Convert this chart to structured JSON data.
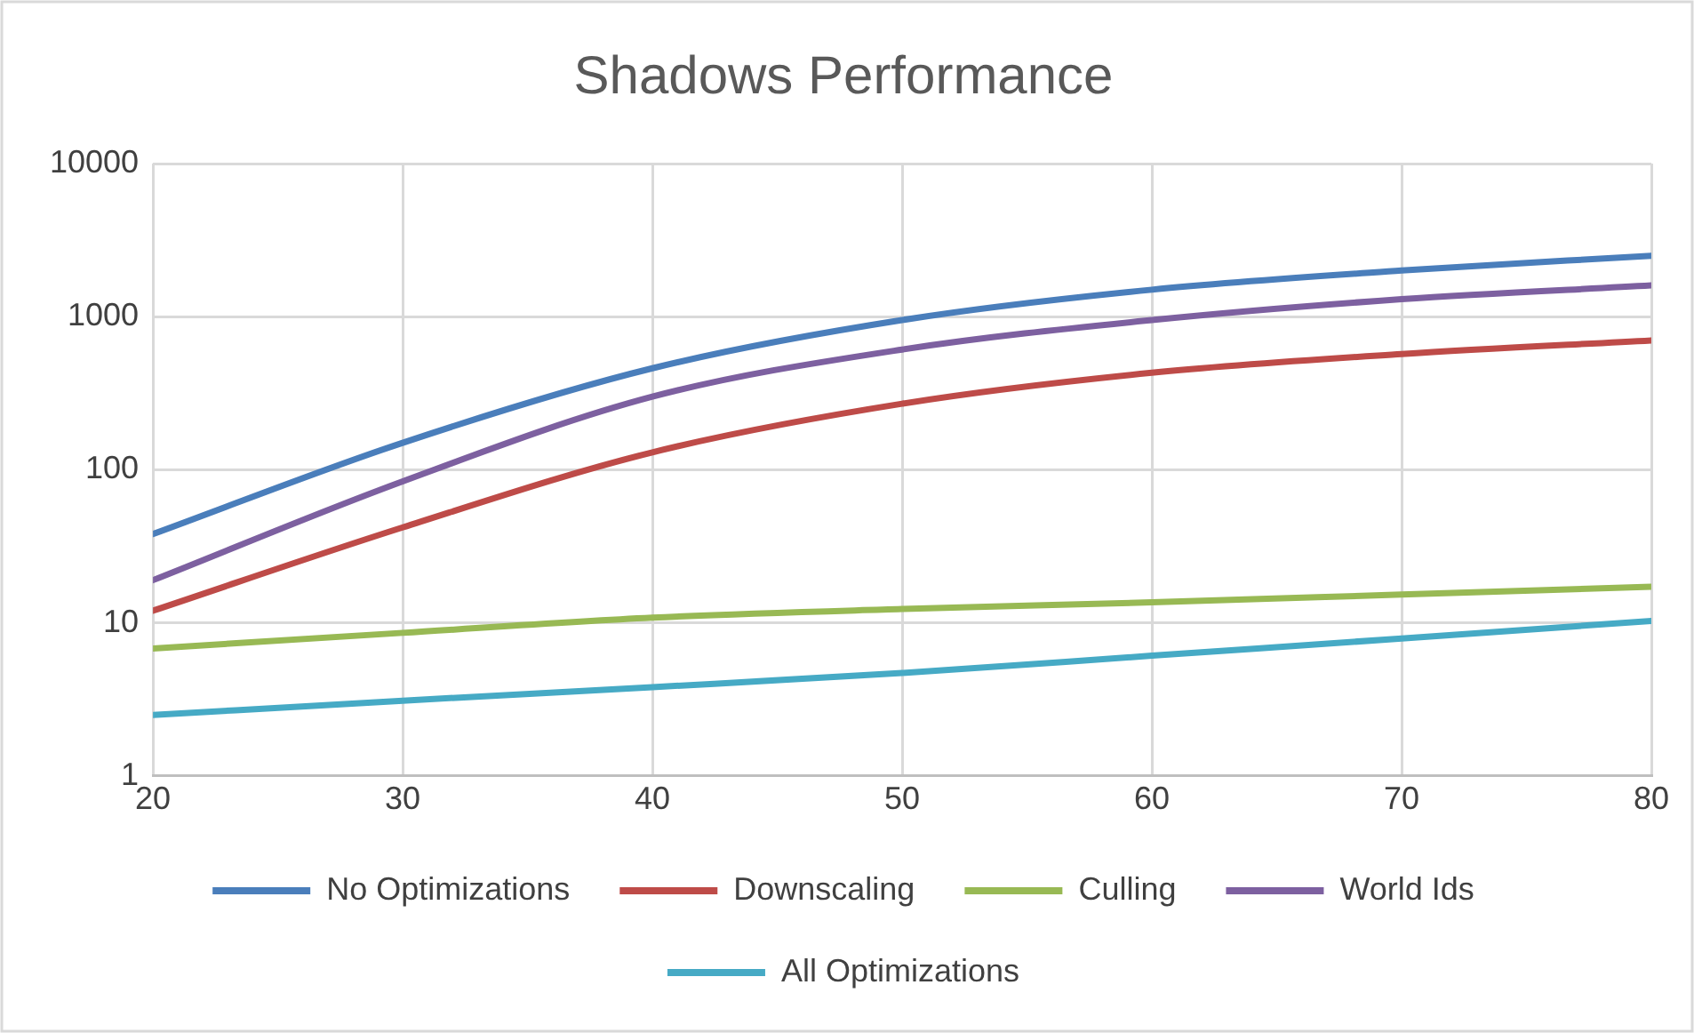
{
  "chart_data": {
    "type": "line",
    "title": "Shadows Performance",
    "x": [
      20,
      30,
      40,
      50,
      60,
      70,
      80
    ],
    "xlim": [
      20,
      80
    ],
    "xticks": [
      20,
      30,
      40,
      50,
      60,
      70,
      80
    ],
    "ylim": [
      1,
      10000
    ],
    "yticks": [
      1,
      10,
      100,
      1000,
      10000
    ],
    "log": "y",
    "grid": true,
    "legend": "bottom",
    "marker": "none",
    "line_style": "solid",
    "series": [
      {
        "name": "No Optimizations",
        "color": "#4a7ebb",
        "values": [
          38,
          150,
          460,
          950,
          1500,
          2000,
          2500
        ]
      },
      {
        "name": "Downscaling",
        "color": "#be4b48",
        "values": [
          12,
          42,
          130,
          270,
          430,
          570,
          700
        ]
      },
      {
        "name": "Culling",
        "color": "#98b954",
        "values": [
          6.8,
          8.6,
          10.8,
          12.3,
          13.6,
          15.3,
          17.2
        ]
      },
      {
        "name": "World Ids",
        "color": "#7d60a0",
        "values": [
          19,
          84,
          300,
          610,
          950,
          1300,
          1600
        ]
      },
      {
        "name": "All Optimizations",
        "color": "#46aac5",
        "values": [
          2.5,
          3.1,
          3.8,
          4.7,
          6.1,
          7.9,
          10.3
        ]
      }
    ]
  }
}
